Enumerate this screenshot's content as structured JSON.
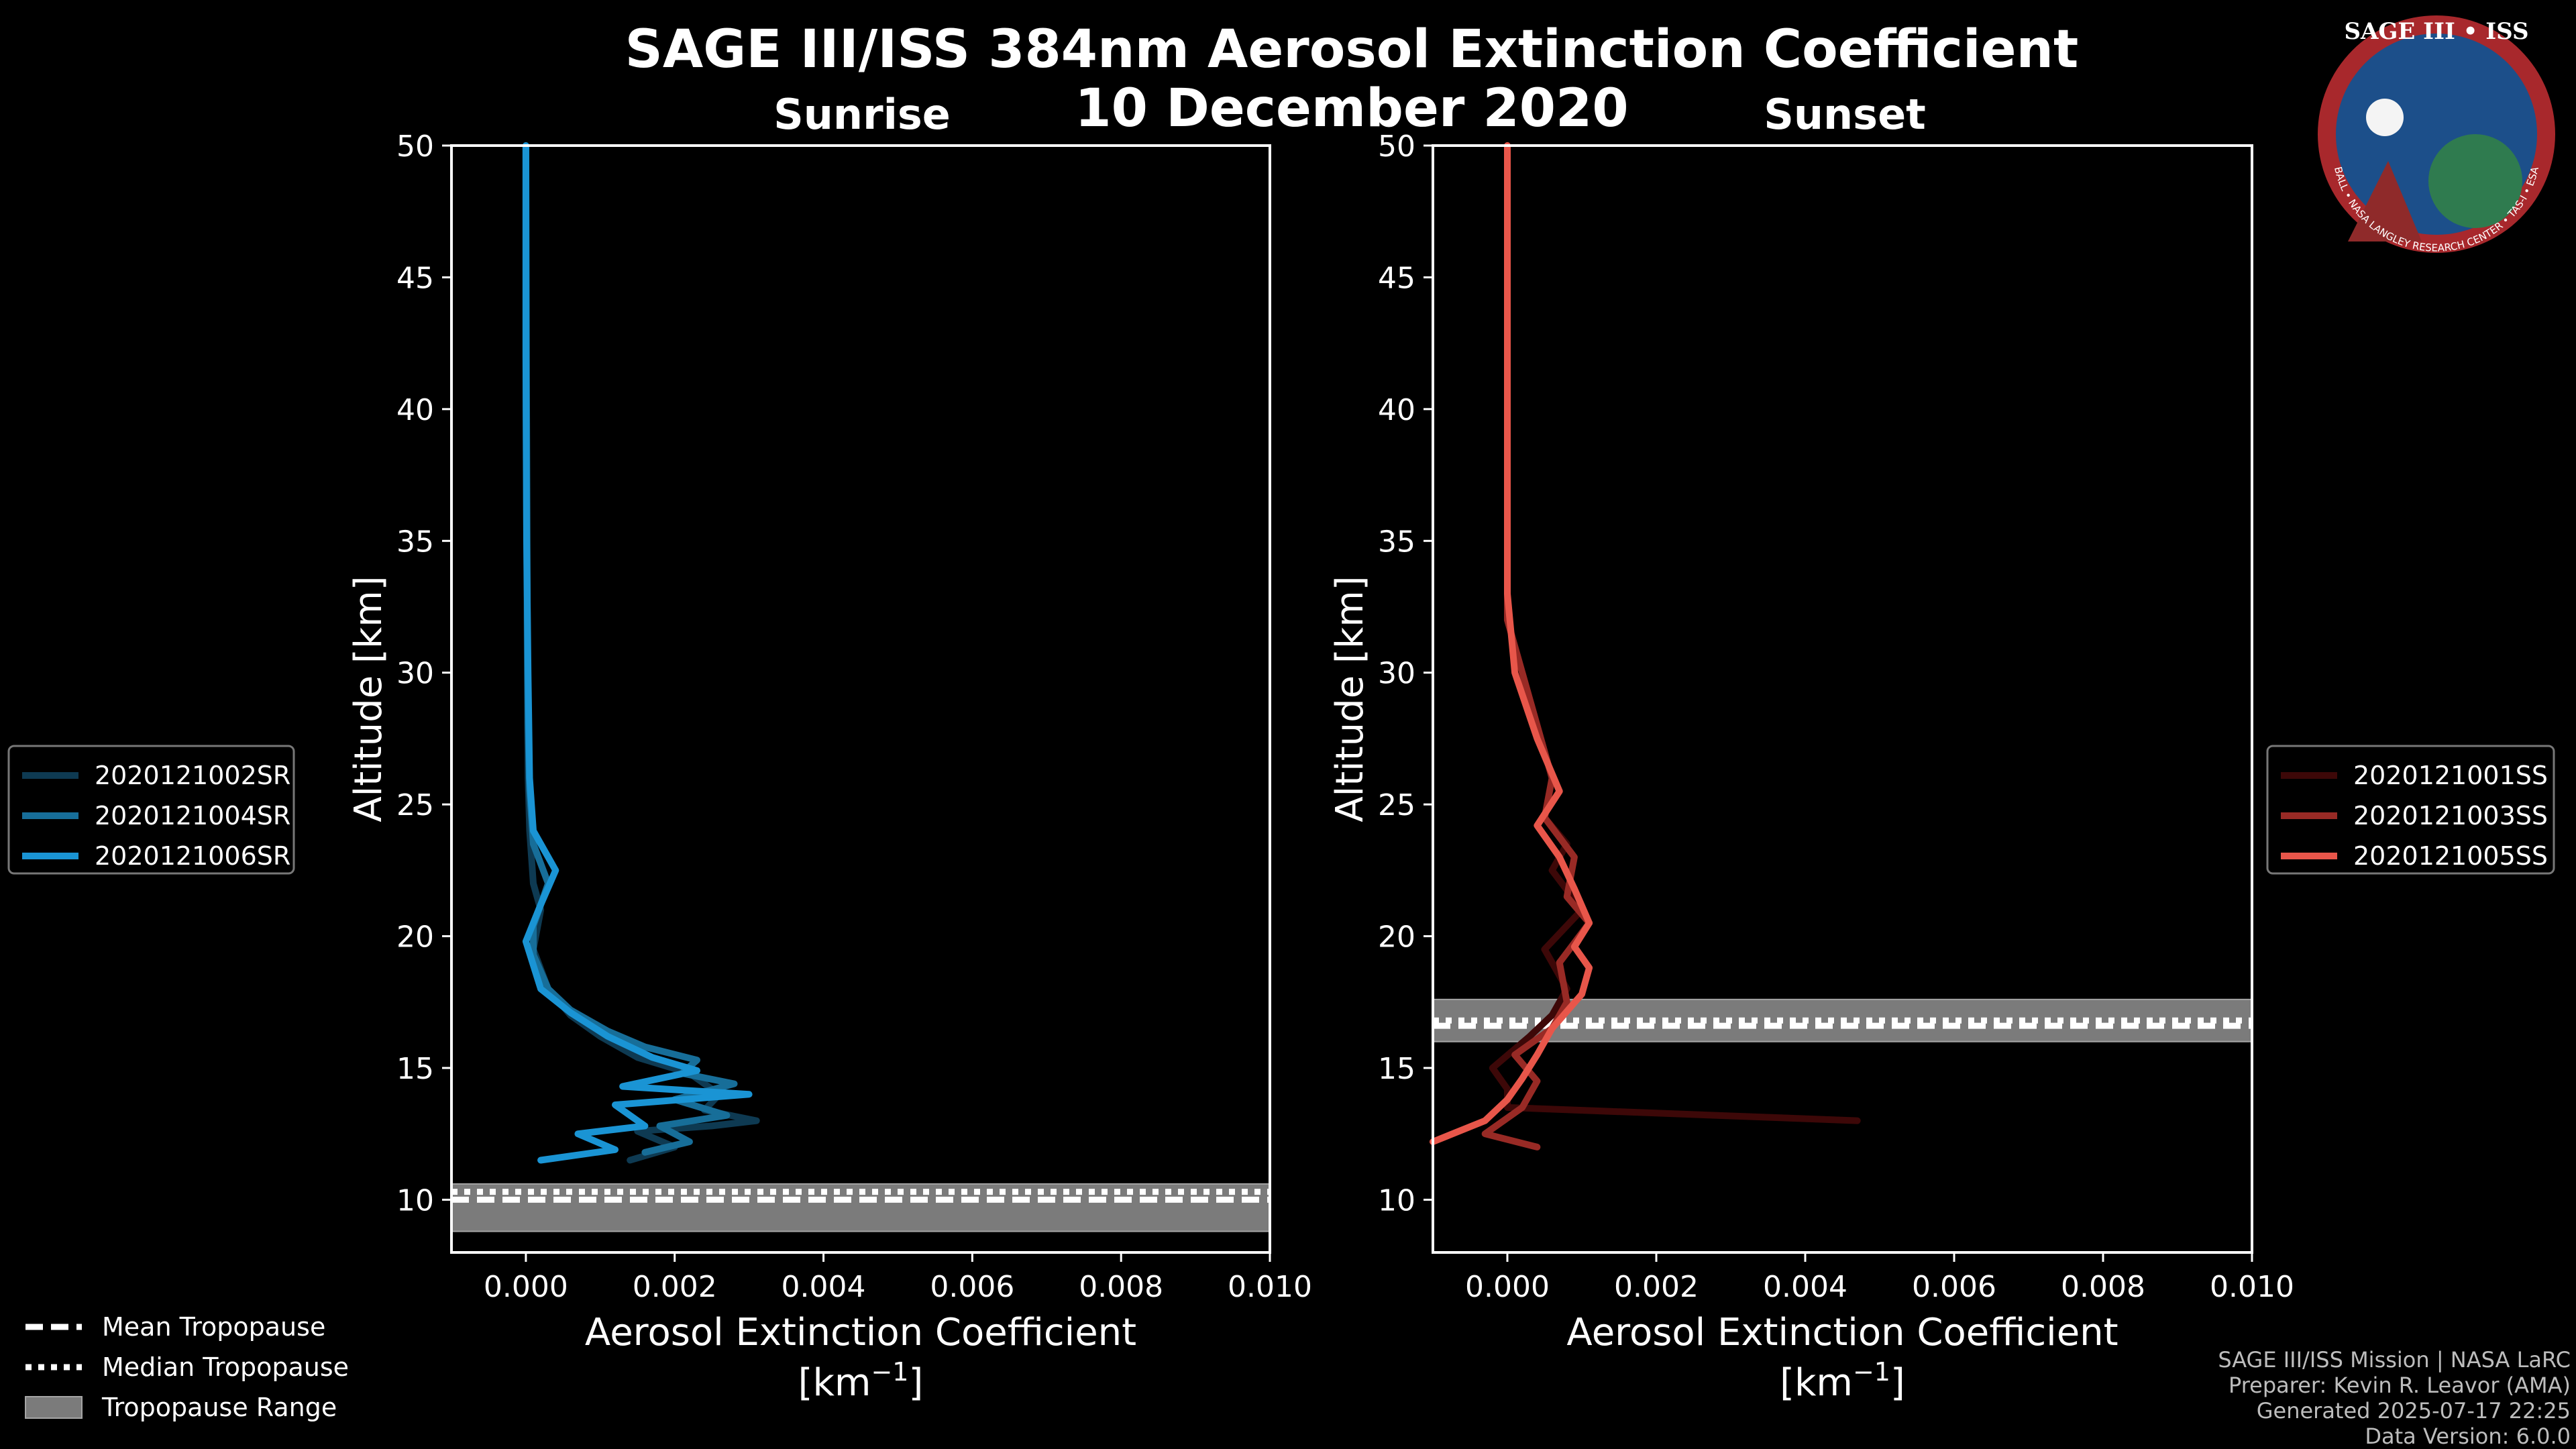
{
  "header": {
    "title": "SAGE III/ISS 384nm Aerosol Extinction Coefficient",
    "date": "10 December 2020"
  },
  "logo": {
    "text": "SAGE III • ISS",
    "ring_text": "BALL • NASA LANGLEY RESEARCH CENTER • TAS-I • ESA"
  },
  "credits": {
    "line1": "SAGE III/ISS Mission | NASA LaRC",
    "line2": "Preparer: Kevin R. Leavor (AMA)",
    "line3": "Generated 2025-07-17 22:25",
    "line4": "Data Version: 6.0.0"
  },
  "tropo_legend": {
    "mean": "Mean Tropopause",
    "median": "Median Tropopause",
    "range": "Tropopause Range"
  },
  "chart_data": [
    {
      "type": "line",
      "panel": "sunrise",
      "title": "Sunrise",
      "xlabel": "Aerosol Extinction Coefficient",
      "xunit_base": "[km",
      "xunit_sup": "−1",
      "xunit_end": "]",
      "ylabel": "Altitude [km]",
      "xlim": [
        -0.001,
        0.01
      ],
      "ylim": [
        8,
        50
      ],
      "xticks": [
        0.0,
        0.002,
        0.004,
        0.006,
        0.008,
        0.01
      ],
      "xtick_labels": [
        "0.000",
        "0.002",
        "0.004",
        "0.006",
        "0.008",
        "0.010"
      ],
      "yticks": [
        10,
        15,
        20,
        25,
        30,
        35,
        40,
        45,
        50
      ],
      "ytick_labels": [
        "10",
        "15",
        "20",
        "25",
        "30",
        "35",
        "40",
        "45",
        "50"
      ],
      "tropopause": {
        "mean": 10.0,
        "median": 10.3,
        "range": [
          8.8,
          10.6
        ]
      },
      "series": [
        {
          "name": "2020121002SR",
          "color": "#0e3a52",
          "x": [
            0.0014,
            0.002,
            0.0015,
            0.0025,
            0.0031,
            0.0024,
            0.0026,
            0.0022,
            0.0015,
            0.001,
            0.0006,
            0.0003,
            0.0001,
            0.0002,
            0.0001,
            5e-05,
            3e-05,
            2e-05,
            1e-05,
            0.0,
            0.0
          ],
          "y": [
            11.5,
            12,
            12.6,
            12.8,
            13.0,
            13.4,
            14.0,
            14.8,
            15.4,
            16.2,
            17.0,
            18.0,
            19.5,
            21.0,
            22.0,
            24.0,
            26.0,
            30.0,
            35.0,
            40.0,
            50.0
          ]
        },
        {
          "name": "2020121004SR",
          "color": "#176e99",
          "x": [
            0.0016,
            0.0022,
            0.0018,
            0.0027,
            0.002,
            0.0028,
            0.0021,
            0.0023,
            0.0016,
            0.0011,
            0.0006,
            0.0003,
            0.0001,
            0.0001,
            0.0003,
            0.0001,
            5e-05,
            3e-05,
            2e-05,
            1e-05,
            0.0
          ],
          "y": [
            11.8,
            12.2,
            12.8,
            13.2,
            13.8,
            14.4,
            14.8,
            15.3,
            15.8,
            16.4,
            17.2,
            18.0,
            19.3,
            20.4,
            22.0,
            23.5,
            25.5,
            28.0,
            32.0,
            40.0,
            50.0
          ]
        },
        {
          "name": "2020121006SR",
          "color": "#1a94d4",
          "x": [
            0.0002,
            0.0012,
            0.0007,
            0.0016,
            0.0012,
            0.003,
            0.0013,
            0.0023,
            0.0017,
            0.0011,
            0.0006,
            0.0002,
            0.0,
            0.0002,
            0.0004,
            0.0001,
            5e-05,
            3e-05,
            1e-05,
            0.0,
            0.0
          ],
          "y": [
            11.5,
            11.9,
            12.5,
            12.8,
            13.6,
            14.0,
            14.3,
            14.9,
            15.4,
            16.2,
            17.1,
            18.0,
            19.8,
            21.2,
            22.5,
            24.0,
            26.0,
            30.0,
            35.0,
            42.0,
            50.0
          ]
        }
      ]
    },
    {
      "type": "line",
      "panel": "sunset",
      "title": "Sunset",
      "xlabel": "Aerosol Extinction Coefficient",
      "xunit_base": "[km",
      "xunit_sup": "−1",
      "xunit_end": "]",
      "ylabel": "Altitude [km]",
      "xlim": [
        -0.001,
        0.01
      ],
      "ylim": [
        8,
        50
      ],
      "xticks": [
        0.0,
        0.002,
        0.004,
        0.006,
        0.008,
        0.01
      ],
      "xtick_labels": [
        "0.000",
        "0.002",
        "0.004",
        "0.006",
        "0.008",
        "0.010"
      ],
      "yticks": [
        10,
        15,
        20,
        25,
        30,
        35,
        40,
        45,
        50
      ],
      "ytick_labels": [
        "10",
        "15",
        "20",
        "25",
        "30",
        "35",
        "40",
        "45",
        "50"
      ],
      "tropopause": {
        "mean": 16.6,
        "median": 16.8,
        "range": [
          16.0,
          17.6
        ]
      },
      "series": [
        {
          "name": "2020121001SS",
          "color": "#3d0808",
          "x": [
            0.0047,
            0.0,
            0.0,
            -0.0002,
            0.0003,
            0.0006,
            0.0008,
            0.0005,
            0.001,
            0.0006,
            0.0008,
            0.0005,
            0.0006,
            0.0004,
            0.0002,
            0.0,
            0.0,
            0.0,
            0.0
          ],
          "y": [
            13.0,
            13.5,
            14.2,
            15.0,
            16.2,
            17.0,
            18.0,
            19.5,
            21.0,
            22.5,
            23.5,
            24.5,
            26.0,
            28.0,
            30.0,
            32.0,
            36.0,
            40.0,
            50.0
          ]
        },
        {
          "name": "2020121003SS",
          "color": "#982a25",
          "x": [
            0.0004,
            -0.0003,
            0.0002,
            0.0004,
            0.0001,
            0.0006,
            0.0008,
            0.0007,
            0.0011,
            0.0008,
            0.0009,
            0.0005,
            0.0006,
            0.0004,
            0.0002,
            0.0,
            0.0,
            0.0,
            0.0
          ],
          "y": [
            12.0,
            12.5,
            13.5,
            14.5,
            15.5,
            16.5,
            17.5,
            19.0,
            20.5,
            21.5,
            23.0,
            24.5,
            26.0,
            28.0,
            30.0,
            32.0,
            36.0,
            42.0,
            50.0
          ]
        },
        {
          "name": "2020121005SS",
          "color": "#e8564a",
          "x": [
            -0.001,
            -0.0003,
            0.0,
            0.0002,
            0.0004,
            0.0006,
            0.001,
            0.0011,
            0.0009,
            0.0011,
            0.0009,
            0.0007,
            0.0004,
            0.0007,
            0.0004,
            0.0001,
            0.0,
            0.0,
            0.0
          ],
          "y": [
            12.2,
            13.0,
            13.8,
            14.6,
            15.5,
            16.5,
            17.8,
            18.8,
            19.6,
            20.5,
            21.8,
            23.0,
            24.2,
            25.5,
            27.5,
            30.0,
            33.0,
            40.0,
            50.0
          ]
        }
      ]
    }
  ]
}
